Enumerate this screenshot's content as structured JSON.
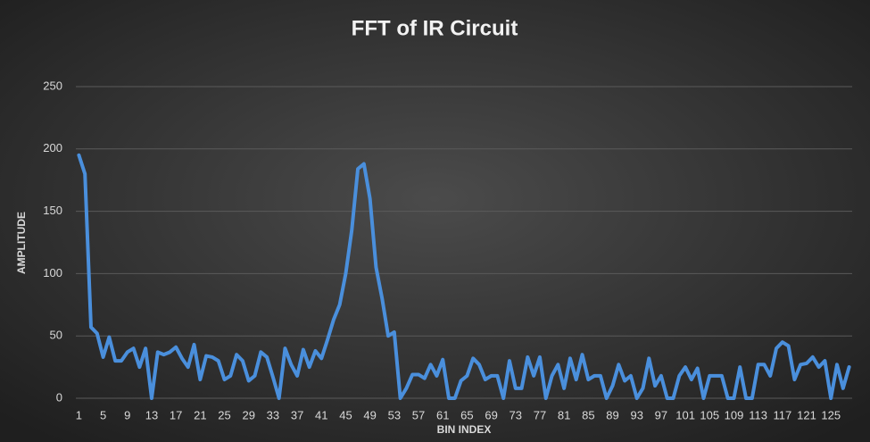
{
  "chart_data": {
    "type": "line",
    "title": "FFT of IR Circuit",
    "x_label": "BIN INDEX",
    "y_label": "AMPLITUDE",
    "categories": [
      1,
      null,
      null,
      null,
      5,
      null,
      null,
      null,
      9,
      null,
      null,
      null,
      13,
      null,
      null,
      null,
      17,
      null,
      null,
      null,
      21,
      null,
      null,
      null,
      25,
      null,
      null,
      null,
      29,
      null,
      null,
      null,
      33,
      null,
      null,
      null,
      37,
      null,
      null,
      null,
      41,
      null,
      null,
      null,
      45,
      null,
      null,
      null,
      49,
      null,
      null,
      null,
      53,
      null,
      null,
      null,
      57,
      null,
      null,
      null,
      61,
      null,
      null,
      null,
      65,
      null,
      null,
      null,
      69,
      null,
      null,
      null,
      73,
      null,
      null,
      null,
      77,
      null,
      null,
      null,
      81,
      null,
      null,
      null,
      85,
      null,
      null,
      null,
      89,
      null,
      null,
      null,
      93,
      null,
      null,
      null,
      97,
      null,
      null,
      null,
      101,
      null,
      null,
      null,
      105,
      null,
      null,
      null,
      109,
      null,
      null,
      null,
      113,
      null,
      null,
      null,
      117,
      null,
      null,
      null,
      121,
      null,
      null,
      null,
      125,
      null,
      null,
      null
    ],
    "values": [
      195,
      180,
      57,
      52,
      33,
      49,
      30,
      30,
      37,
      40,
      25,
      40,
      0,
      37,
      35,
      37,
      41,
      32,
      25,
      43,
      15,
      34,
      33,
      30,
      15,
      18,
      35,
      30,
      14,
      18,
      37,
      33,
      17,
      0,
      40,
      27,
      18,
      39,
      25,
      38,
      32,
      47,
      63,
      75,
      100,
      135,
      184,
      188,
      160,
      105,
      80,
      50,
      53,
      0,
      8,
      19,
      19,
      16,
      27,
      18,
      31,
      0,
      0,
      14,
      18,
      32,
      27,
      15,
      18,
      18,
      0,
      30,
      8,
      8,
      33,
      18,
      33,
      0,
      18,
      27,
      8,
      32,
      15,
      35,
      15,
      18,
      18,
      0,
      10,
      27,
      14,
      18,
      0,
      8,
      32,
      10,
      18,
      0,
      0,
      18,
      25,
      15,
      24,
      0,
      18,
      18,
      18,
      0,
      0,
      25,
      0,
      0,
      27,
      27,
      18,
      40,
      45,
      42,
      15,
      27,
      28,
      33,
      25,
      30,
      0,
      27,
      8,
      25
    ],
    "color": "#4a8fdc",
    "ylim": [
      0,
      250
    ],
    "yticks": [
      0,
      50,
      100,
      150,
      200,
      250
    ],
    "grid": true
  }
}
